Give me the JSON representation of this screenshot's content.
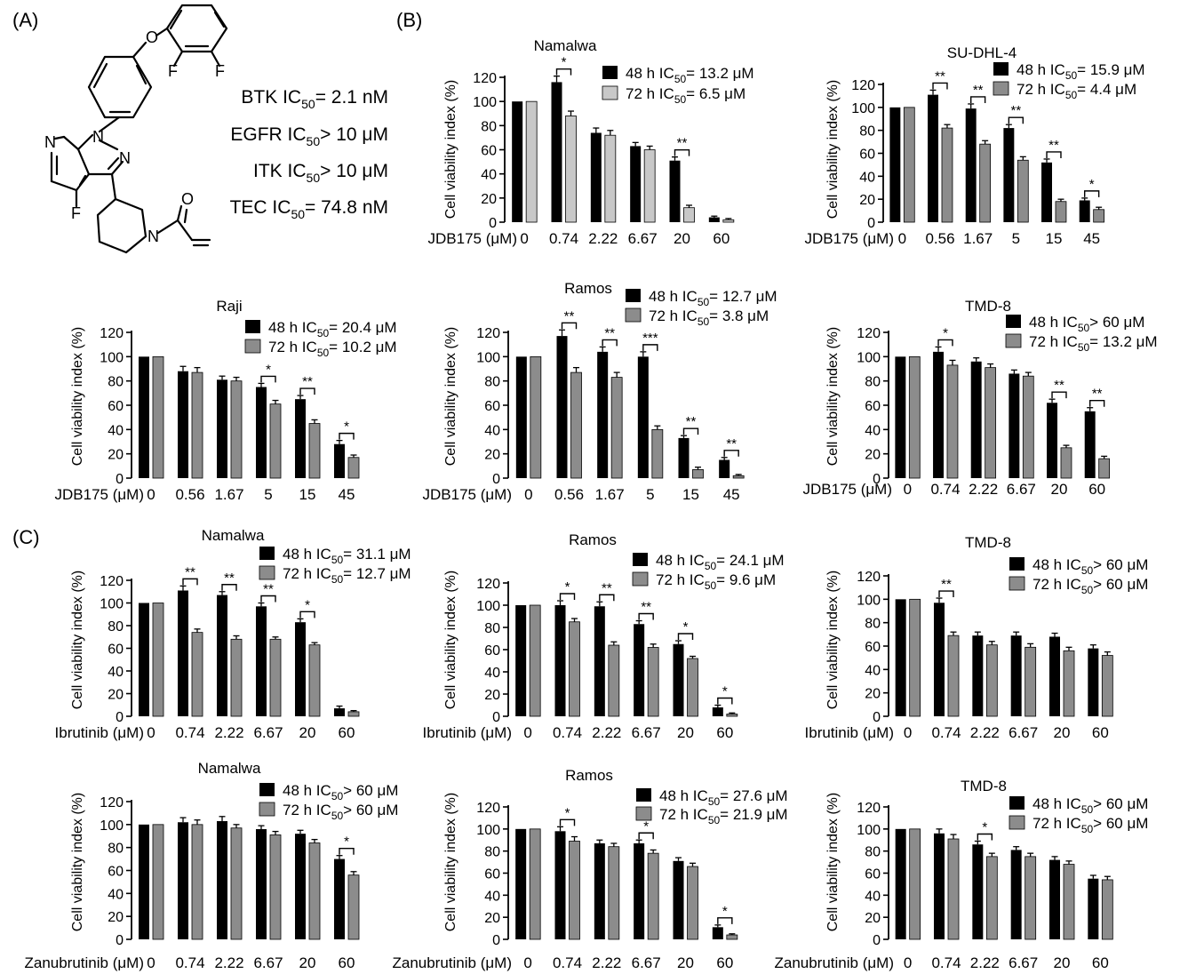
{
  "panel_labels": [
    "(A)",
    "(B)",
    "(C)"
  ],
  "compound": {
    "ic50_lines": [
      {
        "prefix": "BTK IC",
        "sub": "50",
        "suffix": "= 2.1 nM"
      },
      {
        "prefix": "EGFR IC",
        "sub": "50",
        "suffix": "> 10 μM"
      },
      {
        "prefix": "ITK IC",
        "sub": "50",
        "suffix": "> 10 μM"
      },
      {
        "prefix": "TEC IC",
        "sub": "50",
        "suffix": "= 74.8 nM"
      }
    ],
    "atom_labels": [
      "O",
      "F",
      "F",
      "N",
      "N",
      "N",
      "F",
      "N",
      "O"
    ]
  },
  "colors": {
    "h48": "#000000",
    "h72_light": "#c8c8c8",
    "h72": "#8c8c8c"
  },
  "chart_data": [
    {
      "type": "bar",
      "title": "Namalwa",
      "panel": "B",
      "xlabel": "JDB175 (μM)",
      "ylabel": "Cell viability index (%)",
      "ylim": [
        0,
        120
      ],
      "yticks": [
        0,
        20,
        40,
        60,
        80,
        100,
        120
      ],
      "categories": [
        "0",
        "0.74",
        "2.22",
        "6.67",
        "20",
        "60"
      ],
      "series": [
        {
          "name_pre": "48 h IC",
          "name_sub": "50",
          "name_post": "= 13.2 μM",
          "values": [
            100,
            116,
            74,
            63,
            51,
            4
          ],
          "err": [
            0,
            5,
            4,
            3,
            3,
            1
          ]
        },
        {
          "name_pre": "72 h IC",
          "name_sub": "50",
          "name_post": "= 6.5 μM",
          "values": [
            100,
            88,
            72,
            60,
            12,
            2
          ],
          "err": [
            0,
            4,
            4,
            3,
            2,
            1
          ]
        }
      ],
      "significance": [
        {
          "index": 1,
          "label": "*"
        },
        {
          "index": 4,
          "label": "**"
        }
      ]
    },
    {
      "type": "bar",
      "title": "SU-DHL-4",
      "panel": "B",
      "xlabel": "JDB175 (μM)",
      "ylabel": "Cell viability index (%)",
      "ylim": [
        0,
        120
      ],
      "yticks": [
        0,
        20,
        40,
        60,
        80,
        100,
        120
      ],
      "categories": [
        "0",
        "0.56",
        "1.67",
        "5",
        "15",
        "45"
      ],
      "series": [
        {
          "name_pre": "48 h IC",
          "name_sub": "50",
          "name_post": "= 15.9 μM",
          "values": [
            100,
            111,
            99,
            82,
            52,
            19
          ],
          "err": [
            0,
            4,
            4,
            3,
            3,
            2
          ]
        },
        {
          "name_pre": "72 h IC",
          "name_sub": "50",
          "name_post": "= 4.4 μM",
          "values": [
            100,
            82,
            68,
            54,
            18,
            11
          ],
          "err": [
            0,
            3,
            3,
            3,
            2,
            2
          ]
        }
      ],
      "significance": [
        {
          "index": 1,
          "label": "**"
        },
        {
          "index": 2,
          "label": "**"
        },
        {
          "index": 3,
          "label": "**"
        },
        {
          "index": 4,
          "label": "**"
        },
        {
          "index": 5,
          "label": "*"
        }
      ]
    },
    {
      "type": "bar",
      "title": "Raji",
      "panel": "B",
      "xlabel": "JDB175 (μM)",
      "ylabel": "Cell viability index (%)",
      "ylim": [
        0,
        120
      ],
      "yticks": [
        0,
        20,
        40,
        60,
        80,
        100,
        120
      ],
      "categories": [
        "0",
        "0.56",
        "1.67",
        "5",
        "15",
        "45"
      ],
      "series": [
        {
          "name_pre": "48 h IC",
          "name_sub": "50",
          "name_post": "= 20.4 μM",
          "values": [
            100,
            88,
            81,
            75,
            65,
            28
          ],
          "err": [
            0,
            4,
            3,
            3,
            3,
            3
          ]
        },
        {
          "name_pre": "72 h IC",
          "name_sub": "50",
          "name_post": "= 10.2 μM",
          "values": [
            100,
            87,
            80,
            61,
            45,
            17
          ],
          "err": [
            0,
            4,
            3,
            3,
            3,
            2
          ]
        }
      ],
      "significance": [
        {
          "index": 3,
          "label": "*"
        },
        {
          "index": 4,
          "label": "**"
        },
        {
          "index": 5,
          "label": "*"
        }
      ]
    },
    {
      "type": "bar",
      "title": "Ramos",
      "panel": "B",
      "xlabel": "JDB175 (μM)",
      "ylabel": "Cell viability index (%)",
      "ylim": [
        0,
        120
      ],
      "yticks": [
        0,
        20,
        40,
        60,
        80,
        100,
        120
      ],
      "categories": [
        "0",
        "0.56",
        "1.67",
        "5",
        "15",
        "45"
      ],
      "series": [
        {
          "name_pre": "48 h IC",
          "name_sub": "50",
          "name_post": "= 12.7 μM",
          "values": [
            100,
            117,
            104,
            100,
            33,
            15
          ],
          "err": [
            0,
            5,
            4,
            4,
            2,
            2
          ]
        },
        {
          "name_pre": "72 h IC",
          "name_sub": "50",
          "name_post": "= 3.8 μM",
          "values": [
            100,
            87,
            83,
            40,
            7,
            2
          ],
          "err": [
            0,
            4,
            4,
            3,
            2,
            1
          ]
        }
      ],
      "significance": [
        {
          "index": 1,
          "label": "**"
        },
        {
          "index": 2,
          "label": "**"
        },
        {
          "index": 3,
          "label": "***"
        },
        {
          "index": 4,
          "label": "**"
        },
        {
          "index": 5,
          "label": "**"
        }
      ]
    },
    {
      "type": "bar",
      "title": "TMD-8",
      "panel": "B",
      "xlabel": "JDB175 (μM)",
      "ylabel": "Cell viability index (%)",
      "ylim": [
        0,
        120
      ],
      "yticks": [
        0,
        20,
        40,
        60,
        80,
        100,
        120
      ],
      "categories": [
        "0",
        "0.74",
        "2.22",
        "6.67",
        "20",
        "60"
      ],
      "series": [
        {
          "name_pre": "48 h IC",
          "name_sub": "50",
          "name_post": "> 60 μM",
          "values": [
            100,
            104,
            96,
            86,
            62,
            55
          ],
          "err": [
            0,
            4,
            3,
            3,
            3,
            3
          ]
        },
        {
          "name_pre": "72 h IC",
          "name_sub": "50",
          "name_post": "= 13.2 μM",
          "values": [
            100,
            93,
            91,
            84,
            25,
            16
          ],
          "err": [
            0,
            4,
            3,
            3,
            2,
            2
          ]
        }
      ],
      "significance": [
        {
          "index": 1,
          "label": "*"
        },
        {
          "index": 4,
          "label": "**"
        },
        {
          "index": 5,
          "label": "**"
        }
      ]
    },
    {
      "type": "bar",
      "title": "Namalwa",
      "panel": "C",
      "xlabel": "Ibrutinib (μM)",
      "ylabel": "Cell viability index (%)",
      "ylim": [
        0,
        120
      ],
      "yticks": [
        0,
        20,
        40,
        60,
        80,
        100,
        120
      ],
      "categories": [
        "0",
        "0.74",
        "2.22",
        "6.67",
        "20",
        "60"
      ],
      "series": [
        {
          "name_pre": "48 h IC",
          "name_sub": "50",
          "name_post": "= 31.1 μM",
          "values": [
            100,
            111,
            107,
            97,
            83,
            7
          ],
          "err": [
            0,
            4,
            3,
            3,
            3,
            2
          ]
        },
        {
          "name_pre": "72 h IC",
          "name_sub": "50",
          "name_post": "= 12.7 μM",
          "values": [
            100,
            74,
            68,
            68,
            63,
            4
          ],
          "err": [
            0,
            3,
            3,
            2,
            2,
            1
          ]
        }
      ],
      "significance": [
        {
          "index": 1,
          "label": "**"
        },
        {
          "index": 2,
          "label": "**"
        },
        {
          "index": 3,
          "label": "**"
        },
        {
          "index": 4,
          "label": "*"
        }
      ]
    },
    {
      "type": "bar",
      "title": "Ramos",
      "panel": "C",
      "xlabel": "Ibrutinib (μM)",
      "ylabel": "Cell viability index (%)",
      "ylim": [
        0,
        120
      ],
      "yticks": [
        0,
        20,
        40,
        60,
        80,
        100,
        120
      ],
      "categories": [
        "0",
        "0.74",
        "2.22",
        "6.67",
        "20",
        "60"
      ],
      "series": [
        {
          "name_pre": "48 h IC",
          "name_sub": "50",
          "name_post": "= 24.1 μM",
          "values": [
            100,
            100,
            99,
            83,
            65,
            8
          ],
          "err": [
            0,
            4,
            4,
            3,
            3,
            2
          ]
        },
        {
          "name_pre": "72 h IC",
          "name_sub": "50",
          "name_post": "= 9.6 μM",
          "values": [
            100,
            85,
            64,
            62,
            52,
            2
          ],
          "err": [
            0,
            3,
            3,
            3,
            2,
            1
          ]
        }
      ],
      "significance": [
        {
          "index": 1,
          "label": "*"
        },
        {
          "index": 2,
          "label": "**"
        },
        {
          "index": 3,
          "label": "**"
        },
        {
          "index": 4,
          "label": "*"
        },
        {
          "index": 5,
          "label": "*"
        }
      ]
    },
    {
      "type": "bar",
      "title": "TMD-8",
      "panel": "C",
      "xlabel": "Ibrutinib (μM)",
      "ylabel": "Cell viability index (%)",
      "ylim": [
        0,
        120
      ],
      "yticks": [
        0,
        20,
        40,
        60,
        80,
        100,
        120
      ],
      "categories": [
        "0",
        "0.74",
        "2.22",
        "6.67",
        "20",
        "60"
      ],
      "series": [
        {
          "name_pre": "48 h IC",
          "name_sub": "50",
          "name_post": "> 60 μM",
          "values": [
            100,
            97,
            69,
            69,
            68,
            58
          ],
          "err": [
            0,
            4,
            3,
            3,
            3,
            3
          ]
        },
        {
          "name_pre": "72 h IC",
          "name_sub": "50",
          "name_post": "> 60 μM",
          "values": [
            100,
            69,
            61,
            59,
            56,
            52
          ],
          "err": [
            0,
            3,
            3,
            3,
            3,
            3
          ]
        }
      ],
      "significance": [
        {
          "index": 1,
          "label": "**"
        }
      ]
    },
    {
      "type": "bar",
      "title": "Namalwa",
      "panel": "C",
      "xlabel": "Zanubrutinib (μM)",
      "ylabel": "Cell viability index (%)",
      "ylim": [
        0,
        120
      ],
      "yticks": [
        0,
        20,
        40,
        60,
        80,
        100,
        120
      ],
      "categories": [
        "0",
        "0.74",
        "2.22",
        "6.67",
        "20",
        "60"
      ],
      "series": [
        {
          "name_pre": "48 h IC",
          "name_sub": "50",
          "name_post": "> 60 μM",
          "values": [
            100,
            102,
            103,
            96,
            92,
            70
          ],
          "err": [
            0,
            4,
            4,
            3,
            3,
            3
          ]
        },
        {
          "name_pre": "72 h IC",
          "name_sub": "50",
          "name_post": "> 60 μM",
          "values": [
            100,
            100,
            97,
            91,
            84,
            56
          ],
          "err": [
            0,
            4,
            3,
            3,
            3,
            3
          ]
        }
      ],
      "significance": [
        {
          "index": 5,
          "label": "*"
        }
      ]
    },
    {
      "type": "bar",
      "title": "Ramos",
      "panel": "C",
      "xlabel": "Zanubrutinib (μM)",
      "ylabel": "Cell viability index (%)",
      "ylim": [
        0,
        120
      ],
      "yticks": [
        0,
        20,
        40,
        60,
        80,
        100,
        120
      ],
      "categories": [
        "0",
        "0.74",
        "2.22",
        "6.67",
        "20",
        "60"
      ],
      "series": [
        {
          "name_pre": "48 h IC",
          "name_sub": "50",
          "name_post": "= 27.6 μM",
          "values": [
            100,
            98,
            87,
            87,
            71,
            11
          ],
          "err": [
            0,
            4,
            3,
            3,
            3,
            2
          ]
        },
        {
          "name_pre": "72 h IC",
          "name_sub": "50",
          "name_post": "= 21.9 μM",
          "values": [
            100,
            89,
            84,
            78,
            66,
            4
          ],
          "err": [
            0,
            4,
            3,
            3,
            3,
            1
          ]
        }
      ],
      "significance": [
        {
          "index": 1,
          "label": "*"
        },
        {
          "index": 3,
          "label": "*"
        },
        {
          "index": 5,
          "label": "*"
        }
      ]
    },
    {
      "type": "bar",
      "title": "TMD-8",
      "panel": "C",
      "xlabel": "Zanubrutinib (μM)",
      "ylabel": "Cell viability index (%)",
      "ylim": [
        0,
        120
      ],
      "yticks": [
        0,
        20,
        40,
        60,
        80,
        100,
        120
      ],
      "categories": [
        "0",
        "0.74",
        "2.22",
        "6.67",
        "20",
        "60"
      ],
      "series": [
        {
          "name_pre": "48 h IC",
          "name_sub": "50",
          "name_post": "> 60 μM",
          "values": [
            100,
            96,
            86,
            81,
            72,
            55
          ],
          "err": [
            0,
            4,
            3,
            3,
            3,
            3
          ]
        },
        {
          "name_pre": "72 h IC",
          "name_sub": "50",
          "name_post": "> 60 μM",
          "values": [
            100,
            91,
            75,
            75,
            68,
            54
          ],
          "err": [
            0,
            4,
            3,
            3,
            3,
            3
          ]
        }
      ],
      "significance": [
        {
          "index": 2,
          "label": "*"
        }
      ]
    }
  ]
}
